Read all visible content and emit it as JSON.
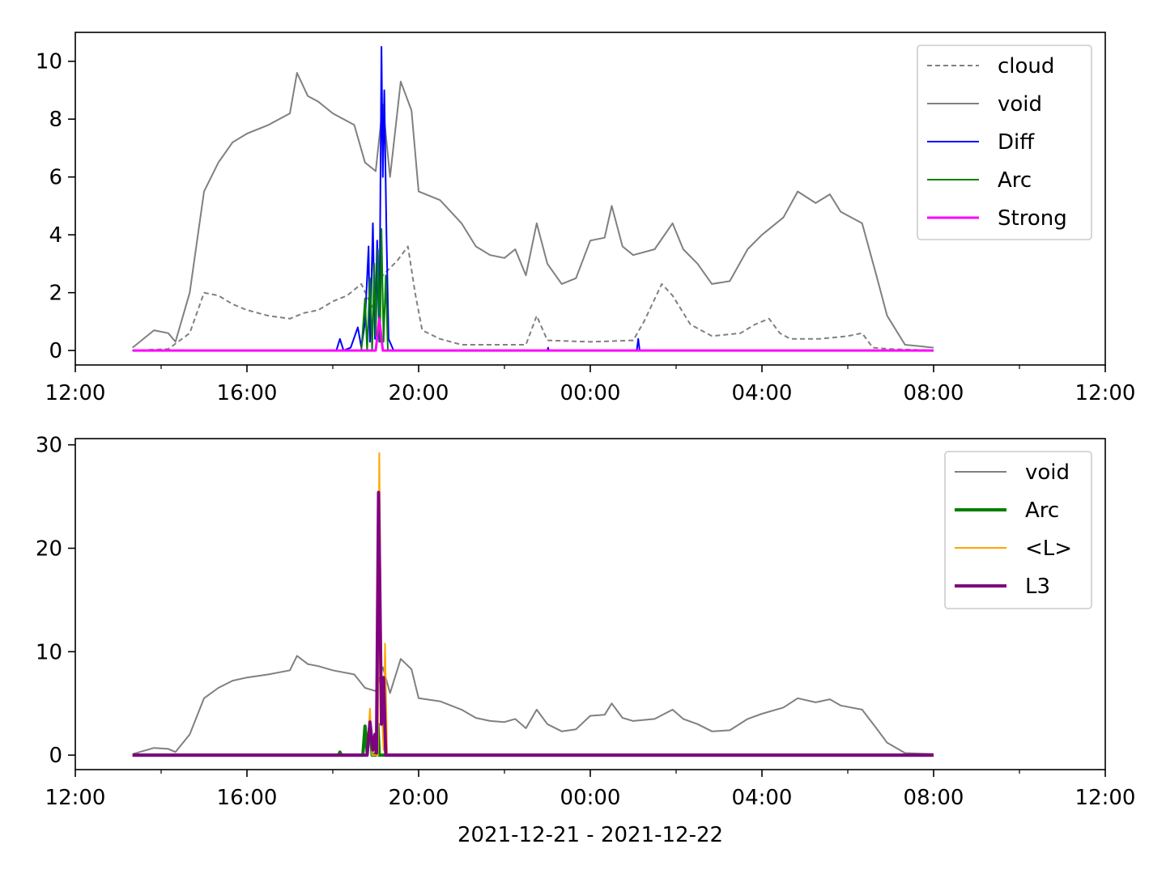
{
  "figure": {
    "xlabel": "2021-12-21 - 2021-12-22"
  },
  "chart_data": [
    {
      "type": "line",
      "x_unit": "hours since 2021-12-21 12:00",
      "xlim": [
        "12:00",
        "12:00"
      ],
      "x_ticks": [
        "12:00",
        "16:00",
        "20:00",
        "00:00",
        "04:00",
        "08:00",
        "12:00"
      ],
      "ylim": [
        -0.5,
        11
      ],
      "y_ticks": [
        0,
        2,
        4,
        6,
        8,
        10
      ],
      "legend_position": "top-right",
      "series": [
        {
          "name": "cloud",
          "color": "#808080",
          "style": "dashed",
          "points": [
            [
              "13:20",
              0
            ],
            [
              "14:10",
              0.05
            ],
            [
              "14:40",
              0.6
            ],
            [
              "15:00",
              2.0
            ],
            [
              "15:20",
              1.9
            ],
            [
              "15:40",
              1.6
            ],
            [
              "16:00",
              1.4
            ],
            [
              "16:30",
              1.2
            ],
            [
              "17:00",
              1.1
            ],
            [
              "17:20",
              1.3
            ],
            [
              "17:40",
              1.4
            ],
            [
              "18:00",
              1.7
            ],
            [
              "18:20",
              1.9
            ],
            [
              "18:40",
              2.3
            ],
            [
              "18:55",
              1.5
            ],
            [
              "19:10",
              2.6
            ],
            [
              "19:30",
              3.1
            ],
            [
              "19:45",
              3.6
            ],
            [
              "19:55",
              2.0
            ],
            [
              "20:05",
              0.7
            ],
            [
              "20:30",
              0.4
            ],
            [
              "21:00",
              0.2
            ],
            [
              "22:00",
              0.2
            ],
            [
              "22:30",
              0.2
            ],
            [
              "22:45",
              1.2
            ],
            [
              "23:00",
              0.35
            ],
            [
              "00:00",
              0.3
            ],
            [
              "01:00",
              0.35
            ],
            [
              "01:15",
              1.0
            ],
            [
              "01:40",
              2.3
            ],
            [
              "01:55",
              1.9
            ],
            [
              "02:20",
              0.9
            ],
            [
              "02:50",
              0.5
            ],
            [
              "03:30",
              0.6
            ],
            [
              "03:50",
              0.9
            ],
            [
              "04:10",
              1.1
            ],
            [
              "04:25",
              0.6
            ],
            [
              "04:40",
              0.4
            ],
            [
              "05:20",
              0.4
            ],
            [
              "06:00",
              0.5
            ],
            [
              "06:20",
              0.6
            ],
            [
              "06:35",
              0.1
            ],
            [
              "07:00",
              0.05
            ],
            [
              "08:00",
              0
            ]
          ]
        },
        {
          "name": "void",
          "color": "#808080",
          "style": "solid",
          "points": [
            [
              "13:20",
              0.1
            ],
            [
              "13:50",
              0.7
            ],
            [
              "14:10",
              0.6
            ],
            [
              "14:20",
              0.3
            ],
            [
              "14:40",
              2.0
            ],
            [
              "15:00",
              5.5
            ],
            [
              "15:20",
              6.5
            ],
            [
              "15:40",
              7.2
            ],
            [
              "16:00",
              7.5
            ],
            [
              "16:30",
              7.8
            ],
            [
              "17:00",
              8.2
            ],
            [
              "17:10",
              9.6
            ],
            [
              "17:25",
              8.8
            ],
            [
              "17:40",
              8.6
            ],
            [
              "18:00",
              8.2
            ],
            [
              "18:30",
              7.8
            ],
            [
              "18:45",
              6.5
            ],
            [
              "19:00",
              6.2
            ],
            [
              "19:10",
              8.5
            ],
            [
              "19:20",
              6.0
            ],
            [
              "19:35",
              9.3
            ],
            [
              "19:50",
              8.3
            ],
            [
              "20:00",
              5.5
            ],
            [
              "20:30",
              5.2
            ],
            [
              "21:00",
              4.4
            ],
            [
              "21:20",
              3.6
            ],
            [
              "21:40",
              3.3
            ],
            [
              "22:00",
              3.2
            ],
            [
              "22:15",
              3.5
            ],
            [
              "22:30",
              2.6
            ],
            [
              "22:45",
              4.4
            ],
            [
              "23:00",
              3.0
            ],
            [
              "23:20",
              2.3
            ],
            [
              "23:40",
              2.5
            ],
            [
              "00:00",
              3.8
            ],
            [
              "00:20",
              3.9
            ],
            [
              "00:30",
              5.0
            ],
            [
              "00:45",
              3.6
            ],
            [
              "01:00",
              3.3
            ],
            [
              "01:30",
              3.5
            ],
            [
              "01:55",
              4.4
            ],
            [
              "02:10",
              3.5
            ],
            [
              "02:30",
              3.0
            ],
            [
              "02:50",
              2.3
            ],
            [
              "03:15",
              2.4
            ],
            [
              "03:40",
              3.5
            ],
            [
              "04:00",
              4.0
            ],
            [
              "04:30",
              4.6
            ],
            [
              "04:50",
              5.5
            ],
            [
              "05:15",
              5.1
            ],
            [
              "05:35",
              5.4
            ],
            [
              "05:50",
              4.8
            ],
            [
              "06:20",
              4.4
            ],
            [
              "06:40",
              2.6
            ],
            [
              "06:55",
              1.2
            ],
            [
              "07:20",
              0.2
            ],
            [
              "08:00",
              0.1
            ]
          ]
        },
        {
          "name": "Diff",
          "color": "#0000ff",
          "style": "solid",
          "points": [
            [
              "13:20",
              0
            ],
            [
              "18:05",
              0
            ],
            [
              "18:10",
              0.4
            ],
            [
              "18:15",
              0
            ],
            [
              "18:25",
              0.1
            ],
            [
              "18:35",
              0.8
            ],
            [
              "18:40",
              0.1
            ],
            [
              "18:45",
              1.0
            ],
            [
              "18:50",
              3.6
            ],
            [
              "18:52",
              0.3
            ],
            [
              "18:56",
              4.4
            ],
            [
              "18:59",
              0.4
            ],
            [
              "19:02",
              3.8
            ],
            [
              "19:05",
              0.3
            ],
            [
              "19:08",
              10.5
            ],
            [
              "19:10",
              6.0
            ],
            [
              "19:12",
              9.0
            ],
            [
              "19:15",
              4.0
            ],
            [
              "19:18",
              0.4
            ],
            [
              "19:25",
              0
            ],
            [
              "23:00",
              0
            ],
            [
              "23:01",
              0.1
            ],
            [
              "23:02",
              0
            ],
            [
              "01:05",
              0
            ],
            [
              "01:07",
              0.4
            ],
            [
              "01:09",
              0
            ],
            [
              "08:00",
              0
            ]
          ]
        },
        {
          "name": "Arc",
          "color": "#008000",
          "style": "solid",
          "points": [
            [
              "13:20",
              0
            ],
            [
              "18:40",
              0
            ],
            [
              "18:45",
              1.8
            ],
            [
              "18:48",
              0
            ],
            [
              "18:52",
              2.5
            ],
            [
              "18:55",
              0
            ],
            [
              "18:58",
              3.0
            ],
            [
              "19:00",
              0.5
            ],
            [
              "19:03",
              3.5
            ],
            [
              "19:06",
              0.3
            ],
            [
              "19:08",
              4.2
            ],
            [
              "19:11",
              0.3
            ],
            [
              "19:14",
              2.6
            ],
            [
              "19:17",
              0
            ],
            [
              "08:00",
              0
            ]
          ]
        },
        {
          "name": "Strong",
          "color": "#ff00ff",
          "style": "solid",
          "width": 3,
          "points": [
            [
              "13:20",
              0
            ],
            [
              "19:00",
              0
            ],
            [
              "19:05",
              1.1
            ],
            [
              "19:10",
              0
            ],
            [
              "08:00",
              0
            ]
          ]
        }
      ]
    },
    {
      "type": "line",
      "x_unit": "hours since 2021-12-21 12:00",
      "xlim": [
        "12:00",
        "12:00"
      ],
      "x_ticks": [
        "12:00",
        "16:00",
        "20:00",
        "00:00",
        "04:00",
        "08:00",
        "12:00"
      ],
      "ylim": [
        -1.4,
        30.6
      ],
      "y_ticks": [
        0,
        10,
        20,
        30
      ],
      "legend_position": "top-right",
      "series": [
        {
          "name": "void",
          "color": "#808080",
          "style": "solid",
          "points": [
            [
              "13:20",
              0.1
            ],
            [
              "13:50",
              0.7
            ],
            [
              "14:10",
              0.6
            ],
            [
              "14:20",
              0.3
            ],
            [
              "14:40",
              2.0
            ],
            [
              "15:00",
              5.5
            ],
            [
              "15:20",
              6.5
            ],
            [
              "15:40",
              7.2
            ],
            [
              "16:00",
              7.5
            ],
            [
              "16:30",
              7.8
            ],
            [
              "17:00",
              8.2
            ],
            [
              "17:10",
              9.6
            ],
            [
              "17:25",
              8.8
            ],
            [
              "17:40",
              8.6
            ],
            [
              "18:00",
              8.2
            ],
            [
              "18:30",
              7.8
            ],
            [
              "18:45",
              6.5
            ],
            [
              "19:00",
              6.2
            ],
            [
              "19:10",
              8.5
            ],
            [
              "19:20",
              6.0
            ],
            [
              "19:35",
              9.3
            ],
            [
              "19:50",
              8.3
            ],
            [
              "20:00",
              5.5
            ],
            [
              "20:30",
              5.2
            ],
            [
              "21:00",
              4.4
            ],
            [
              "21:20",
              3.6
            ],
            [
              "21:40",
              3.3
            ],
            [
              "22:00",
              3.2
            ],
            [
              "22:15",
              3.5
            ],
            [
              "22:30",
              2.6
            ],
            [
              "22:45",
              4.4
            ],
            [
              "23:00",
              3.0
            ],
            [
              "23:20",
              2.3
            ],
            [
              "23:40",
              2.5
            ],
            [
              "00:00",
              3.8
            ],
            [
              "00:20",
              3.9
            ],
            [
              "00:30",
              5.0
            ],
            [
              "00:45",
              3.6
            ],
            [
              "01:00",
              3.3
            ],
            [
              "01:30",
              3.5
            ],
            [
              "01:55",
              4.4
            ],
            [
              "02:10",
              3.5
            ],
            [
              "02:30",
              3.0
            ],
            [
              "02:50",
              2.3
            ],
            [
              "03:15",
              2.4
            ],
            [
              "03:40",
              3.5
            ],
            [
              "04:00",
              4.0
            ],
            [
              "04:30",
              4.6
            ],
            [
              "04:50",
              5.5
            ],
            [
              "05:15",
              5.1
            ],
            [
              "05:35",
              5.4
            ],
            [
              "05:50",
              4.8
            ],
            [
              "06:20",
              4.4
            ],
            [
              "06:40",
              2.6
            ],
            [
              "06:55",
              1.2
            ],
            [
              "07:20",
              0.2
            ],
            [
              "08:00",
              0.1
            ]
          ]
        },
        {
          "name": "Arc",
          "color": "#008000",
          "style": "solid",
          "width": 4,
          "points": [
            [
              "13:20",
              0
            ],
            [
              "18:08",
              0
            ],
            [
              "18:10",
              0.3
            ],
            [
              "18:12",
              0
            ],
            [
              "18:42",
              0
            ],
            [
              "18:45",
              2.8
            ],
            [
              "18:48",
              0.3
            ],
            [
              "18:52",
              3.0
            ],
            [
              "18:55",
              0
            ],
            [
              "19:00",
              0
            ],
            [
              "19:03",
              3.0
            ],
            [
              "19:05",
              0
            ],
            [
              "08:00",
              0
            ]
          ]
        },
        {
          "name": "<L>",
          "color": "#ffa500",
          "style": "solid",
          "points": [
            [
              "13:20",
              0
            ],
            [
              "18:48",
              0
            ],
            [
              "18:52",
              4.5
            ],
            [
              "18:55",
              0
            ],
            [
              "19:03",
              0
            ],
            [
              "19:05",
              29.2
            ],
            [
              "19:08",
              5.0
            ],
            [
              "19:11",
              0.5
            ],
            [
              "19:13",
              10.8
            ],
            [
              "19:16",
              0
            ],
            [
              "08:00",
              0
            ]
          ]
        },
        {
          "name": "L3",
          "color": "#800080",
          "style": "solid",
          "width": 4,
          "points": [
            [
              "13:20",
              0
            ],
            [
              "18:48",
              0
            ],
            [
              "18:52",
              3.2
            ],
            [
              "18:56",
              0.5
            ],
            [
              "18:59",
              2.0
            ],
            [
              "19:01",
              0.2
            ],
            [
              "19:04",
              25.4
            ],
            [
              "19:06",
              14.6
            ],
            [
              "19:08",
              3.0
            ],
            [
              "19:11",
              7.5
            ],
            [
              "19:14",
              0
            ],
            [
              "08:00",
              0
            ]
          ]
        }
      ]
    }
  ]
}
